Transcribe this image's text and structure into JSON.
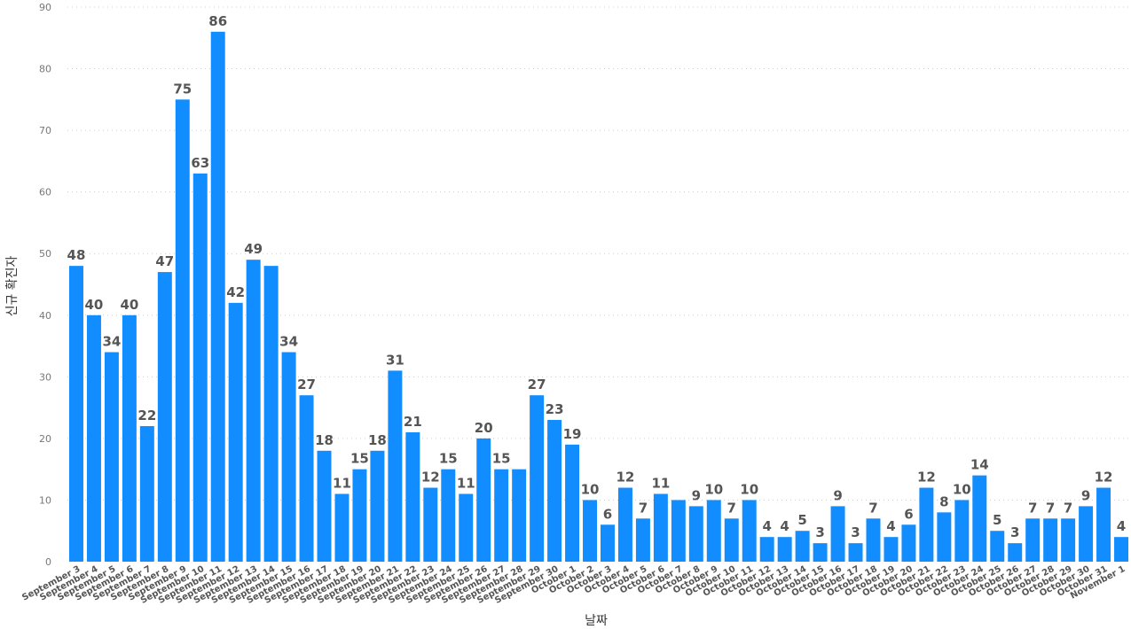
{
  "chart_data": {
    "type": "bar",
    "xlabel": "날짜",
    "ylabel": "신규 확진자",
    "ylim": [
      0,
      90
    ],
    "yticks": [
      0,
      10,
      20,
      30,
      40,
      50,
      60,
      70,
      80,
      90
    ],
    "grid": true,
    "bar_color": "#118DFF",
    "categories": [
      "September 3",
      "September 4",
      "September 5",
      "September 6",
      "September 7",
      "September 8",
      "September 9",
      "September 10",
      "September 11",
      "September 12",
      "September 13",
      "September 14",
      "September 15",
      "September 16",
      "September 17",
      "September 18",
      "September 19",
      "September 20",
      "September 21",
      "September 22",
      "September 23",
      "September 24",
      "September 25",
      "September 26",
      "September 27",
      "September 28",
      "September 29",
      "September 30",
      "October 1",
      "October 2",
      "October 3",
      "October 4",
      "October 5",
      "October 6",
      "October 7",
      "October 8",
      "October 9",
      "October 10",
      "October 11",
      "October 12",
      "October 13",
      "October 14",
      "October 15",
      "October 16",
      "October 17",
      "October 18",
      "October 19",
      "October 20",
      "October 21",
      "October 22",
      "October 23",
      "October 24",
      "October 25",
      "October 26",
      "October 27",
      "October 28",
      "October 29",
      "October 30",
      "October 31",
      "November 1"
    ],
    "values": [
      48,
      40,
      34,
      40,
      22,
      47,
      75,
      63,
      86,
      42,
      49,
      48,
      34,
      27,
      18,
      11,
      15,
      18,
      31,
      21,
      12,
      15,
      11,
      20,
      15,
      15,
      27,
      23,
      19,
      10,
      6,
      12,
      7,
      11,
      10,
      9,
      10,
      7,
      10,
      4,
      4,
      5,
      3,
      9,
      3,
      7,
      4,
      6,
      12,
      8,
      10,
      14,
      5,
      3,
      7,
      7,
      7,
      9,
      12,
      4
    ],
    "data_labels": [
      "48",
      "40",
      "34",
      "40",
      "22",
      "47",
      "75",
      "63",
      "86",
      "42",
      "49",
      "",
      "34",
      "27",
      "18",
      "11",
      "15",
      "18",
      "31",
      "21",
      "12",
      "15",
      "11",
      "20",
      "15",
      "",
      "27",
      "23",
      "19",
      "10",
      "6",
      "12",
      "7",
      "11",
      "",
      "9",
      "10",
      "7",
      "10",
      "4",
      "4",
      "5",
      "3",
      "9",
      "3",
      "7",
      "4",
      "6",
      "12",
      "8",
      "10",
      "14",
      "5",
      "3",
      "7",
      "7",
      "7",
      "9",
      "12",
      "4"
    ]
  }
}
